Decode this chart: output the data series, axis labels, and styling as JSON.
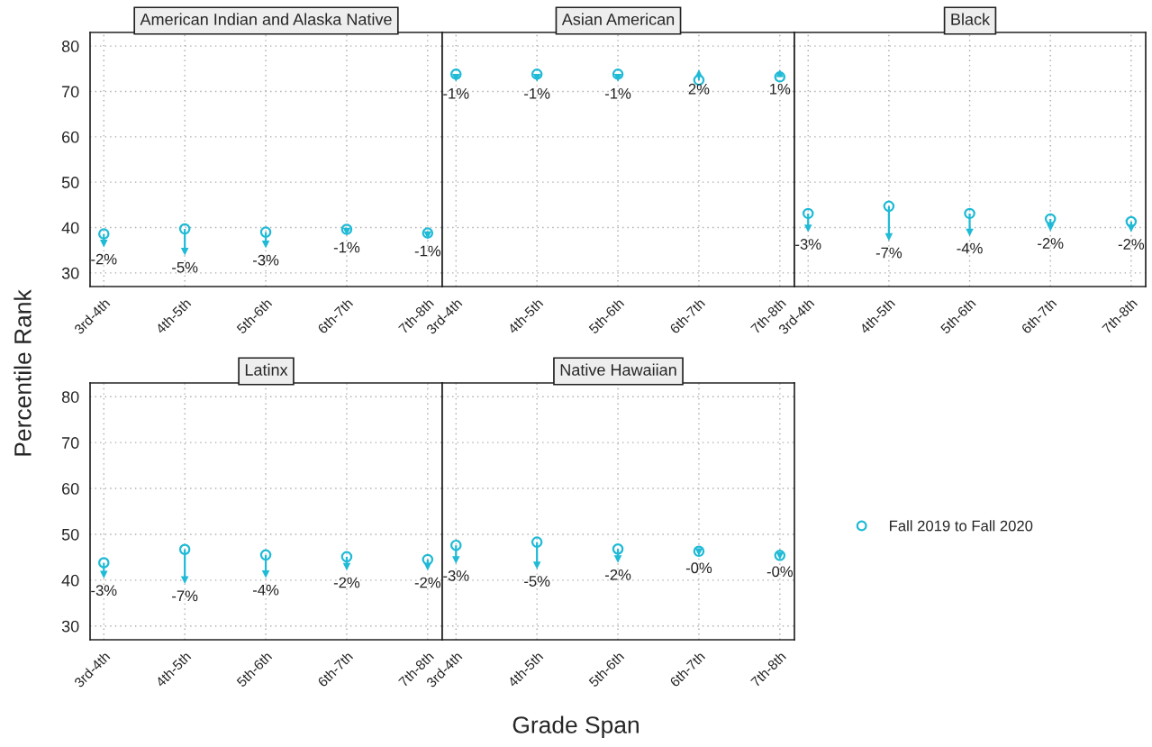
{
  "chart_data": [
    {
      "type": "scatter",
      "title": "American Indian and Alaska Native",
      "xlabel": "Grade Span",
      "ylabel": "Percentile Rank",
      "categories": [
        "3rd-4th",
        "4th-5th",
        "5th-6th",
        "6th-7th",
        "7th-8th"
      ],
      "ylim": [
        27,
        83
      ],
      "yticks": [
        30,
        40,
        50,
        60,
        70,
        80
      ],
      "grid": true,
      "legend": "right",
      "marker": "circle",
      "series": [
        {
          "name": "Fall 2019 to Fall 2020",
          "color": "#1fbad6",
          "values": [
            38.6,
            39.7,
            39.0,
            39.6,
            38.8
          ]
        },
        {
          "color": "#1fbad6",
          "marker": "triangle",
          "values": [
            36.5,
            34.7,
            36.3,
            39.1,
            38.3
          ]
        }
      ],
      "annotations": [
        "-2%",
        "-5%",
        "-3%",
        "-1%",
        "-1%"
      ]
    },
    {
      "type": "scatter",
      "title": "Asian American",
      "categories": [
        "3rd-4th",
        "4th-5th",
        "5th-6th",
        "6th-7th",
        "7th-8th"
      ],
      "ylim": [
        27,
        83
      ],
      "yticks": [
        30,
        40,
        50,
        60,
        70,
        80
      ],
      "grid": true,
      "marker": "circle",
      "tick_labels": "x",
      "series": [
        {
          "color": "#1fbad6",
          "values": [
            73.8,
            73.8,
            73.8,
            72.5,
            73.2
          ]
        },
        {
          "color": "#1fbad6",
          "marker": "triangle",
          "values": [
            73.0,
            73.0,
            73.0,
            74.0,
            74.0
          ]
        }
      ],
      "annotations": [
        "-1%",
        "-1%",
        "-1%",
        "2%",
        "1%"
      ]
    },
    {
      "type": "scatter",
      "title": "Black",
      "categories": [
        "3rd-4th",
        "4th-5th",
        "5th-6th",
        "6th-7th",
        "7th-8th"
      ],
      "ylim": [
        27,
        83
      ],
      "yticks": [
        30,
        40,
        50,
        60,
        70,
        80
      ],
      "grid": true,
      "marker": "circle",
      "tick_labels": "x",
      "series": [
        {
          "color": "#1fbad6",
          "values": [
            43.1,
            44.7,
            43.1,
            41.9,
            41.3
          ]
        },
        {
          "color": "#1fbad6",
          "marker": "triangle",
          "values": [
            39.8,
            37.9,
            38.9,
            40.0,
            39.8
          ]
        }
      ],
      "annotations": [
        "-3%",
        "-7%",
        "-4%",
        "-2%",
        "-2%"
      ]
    },
    {
      "type": "scatter",
      "title": "Latinx",
      "categories": [
        "3rd-4th",
        "4th-5th",
        "5th-6th",
        "6th-7th",
        "7th-8th"
      ],
      "ylim": [
        27,
        83
      ],
      "yticks": [
        30,
        40,
        50,
        60,
        70,
        80
      ],
      "grid": true,
      "marker": "circle",
      "series": [
        {
          "color": "#1fbad6",
          "values": [
            43.8,
            46.7,
            45.5,
            45.1,
            44.5
          ]
        },
        {
          "color": "#1fbad6",
          "marker": "triangle",
          "values": [
            41.2,
            40.0,
            41.3,
            42.9,
            42.9
          ]
        }
      ],
      "annotations": [
        "-3%",
        "-7%",
        "-4%",
        "-2%",
        "-2%"
      ]
    },
    {
      "type": "scatter",
      "title": "Native Hawaiian",
      "categories": [
        "3rd-4th",
        "4th-5th",
        "5th-6th",
        "6th-7th",
        "7th-8th"
      ],
      "ylim": [
        27,
        83
      ],
      "yticks": [
        30,
        40,
        50,
        60,
        70,
        80
      ],
      "grid": true,
      "marker": "circle",
      "tick_labels": "x",
      "series": [
        {
          "color": "#1fbad6",
          "values": [
            47.6,
            48.3,
            46.8,
            46.3,
            45.4
          ]
        },
        {
          "color": "#1fbad6",
          "marker": "triangle",
          "values": [
            44.4,
            43.2,
            44.6,
            46.1,
            45.3
          ]
        }
      ],
      "annotations": [
        "-3%",
        "-5%",
        "-2%",
        "-0%",
        "-0%"
      ]
    }
  ]
}
